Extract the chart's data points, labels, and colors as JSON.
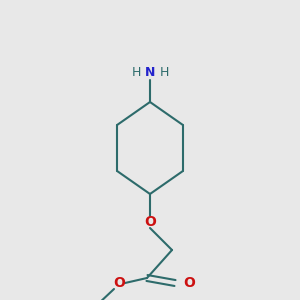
{
  "background_color": "#e8e8e8",
  "bond_color": "#2d6b6b",
  "nitrogen_color": "#2323cc",
  "hydrogen_color": "#2d6b6b",
  "oxygen_color": "#cc1111",
  "bond_width": 1.5,
  "figsize": [
    3.0,
    3.0
  ],
  "dpi": 100,
  "nh2_label": [
    "H",
    "N",
    "H"
  ],
  "o_label": "O"
}
